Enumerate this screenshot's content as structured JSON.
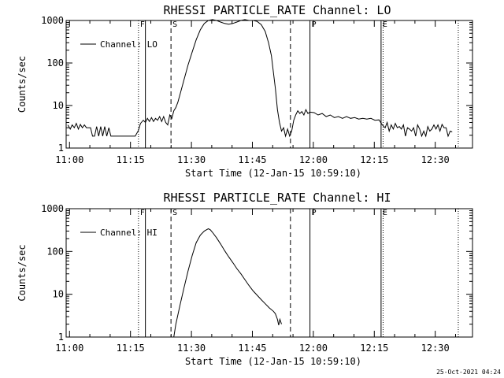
{
  "footer": {
    "timestamp": "25-Oct-2021 04:24"
  },
  "chart_data": [
    {
      "type": "line",
      "title": "RHESSI PARTICLE_RATE Channel: LO",
      "xlabel": "Start Time (12-Jan-15 10:59:10)",
      "ylabel": "Counts/sec",
      "y_scale": "log",
      "ylim": [
        1,
        1000
      ],
      "xlim_minutes": [
        0,
        100
      ],
      "x_ticks": [
        "11:00",
        "11:15",
        "11:30",
        "11:45",
        "12:00",
        "12:15",
        "12:30"
      ],
      "y_ticks": [
        "1",
        "10",
        "100",
        "1000"
      ],
      "legend": {
        "entry": "Channel: LO",
        "placement": "top-left"
      },
      "markers": [
        {
          "label": "F",
          "minute": 17.8,
          "style": "dotted"
        },
        {
          "label": "",
          "minute": 19.5,
          "style": "solid"
        },
        {
          "label": "S",
          "minute": 25.8,
          "style": "dashed"
        },
        {
          "label": "",
          "minute": 55.2,
          "style": "dashed"
        },
        {
          "label": "P",
          "minute": 60.0,
          "style": "solid"
        },
        {
          "label": "E",
          "minute": 77.5,
          "style": "solid"
        },
        {
          "label": "",
          "minute": 78.0,
          "style": "dotted"
        },
        {
          "label": "",
          "minute": 96.5,
          "style": "dotted"
        }
      ],
      "series": [
        {
          "x": [
            0.4,
            1.0,
            1.5,
            2.0,
            2.5,
            3.0,
            3.5,
            4.0,
            4.5,
            5.0,
            5.5,
            6.0,
            6.5,
            7.0,
            7.5,
            8.0,
            8.5,
            9.0,
            9.5,
            10.0,
            10.5,
            11.0,
            11.5,
            12.0,
            12.5,
            13.0,
            14.0,
            15.0,
            16.0,
            17.0,
            17.8,
            18.3,
            19.0,
            19.5,
            20.0,
            20.5,
            21.0,
            21.5,
            22.0,
            22.5,
            23.0,
            23.5,
            24.0,
            24.5,
            25.0,
            25.5,
            26.0,
            26.5,
            27.0,
            27.5,
            28.0,
            29.0,
            30.0,
            31.0,
            32.0,
            33.0,
            34.0,
            35.0,
            36.0,
            37.0,
            38.0,
            39.0,
            40.0,
            41.0,
            42.0,
            43.0,
            44.0,
            45.0,
            46.0,
            47.0,
            48.0,
            49.0,
            49.8,
            50.5,
            51.0,
            51.5,
            52.0,
            52.5,
            53.0,
            53.5,
            54.0,
            54.5,
            55.0,
            55.5,
            56.0,
            56.5,
            57.0,
            57.5,
            58.0,
            58.5,
            59.0,
            59.5,
            60.0,
            61.0,
            62.0,
            63.0,
            64.0,
            65.0,
            66.0,
            67.0,
            68.0,
            69.0,
            70.0,
            71.0,
            72.0,
            73.0,
            74.0,
            75.0,
            76.0,
            77.0,
            77.8,
            78.5,
            79.0,
            79.5,
            80.0,
            80.5,
            81.0,
            81.5,
            82.0,
            82.5,
            83.0,
            83.5,
            84.0,
            84.5,
            85.0,
            85.5,
            86.0,
            86.5,
            87.0,
            87.5,
            88.0,
            88.5,
            89.0,
            89.5,
            90.0,
            90.5,
            91.0,
            91.5,
            92.0,
            92.5,
            93.0,
            93.5,
            94.0,
            94.5,
            95.0
          ],
          "y": [
            3.5,
            2.8,
            3.5,
            3.0,
            3.8,
            2.8,
            3.6,
            3.0,
            3.5,
            3.0,
            3.0,
            3.0,
            1.9,
            1.9,
            3.2,
            1.9,
            3.2,
            1.9,
            3.2,
            1.9,
            3.0,
            1.9,
            1.9,
            1.9,
            1.9,
            1.9,
            1.9,
            1.9,
            1.9,
            1.9,
            2.6,
            3.8,
            4.5,
            4.0,
            5.0,
            4.2,
            5.2,
            4.2,
            5.0,
            4.5,
            5.5,
            4.2,
            5.5,
            4.0,
            3.5,
            6.0,
            5.0,
            7.5,
            9.0,
            12,
            18,
            40,
            90,
            180,
            350,
            600,
            850,
            1000,
            1050,
            1000,
            920,
            850,
            820,
            850,
            920,
            1000,
            1050,
            1000,
            1000,
            950,
            800,
            550,
            300,
            150,
            60,
            25,
            8,
            4,
            2.5,
            3.0,
            1.9,
            2.8,
            1.9,
            2.5,
            4.5,
            6.0,
            7.5,
            6.5,
            7.2,
            6.0,
            8.0,
            6.5,
            7.0,
            6.8,
            6.0,
            6.5,
            5.5,
            6.0,
            5.2,
            5.5,
            5.0,
            5.5,
            5.0,
            5.2,
            4.8,
            5.0,
            4.8,
            5.0,
            4.5,
            4.6,
            3.5,
            3.0,
            4.0,
            2.5,
            3.5,
            2.8,
            3.8,
            3.0,
            3.2,
            2.8,
            3.5,
            1.9,
            3.0,
            2.8,
            2.5,
            3.0,
            1.9,
            3.5,
            2.8,
            1.9,
            2.5,
            1.9,
            3.2,
            2.5,
            2.8,
            3.5,
            2.8,
            3.5,
            2.5,
            3.6,
            3.0,
            3.0,
            1.9,
            2.5,
            2.4
          ]
        }
      ]
    },
    {
      "type": "line",
      "title": "RHESSI PARTICLE_RATE Channel: HI",
      "xlabel": "Start Time (12-Jan-15 10:59:10)",
      "ylabel": "Counts/sec",
      "y_scale": "log",
      "ylim": [
        1,
        1000
      ],
      "xlim_minutes": [
        0,
        100
      ],
      "x_ticks": [
        "11:00",
        "11:15",
        "11:30",
        "11:45",
        "12:00",
        "12:15",
        "12:30"
      ],
      "y_ticks": [
        "1",
        "10",
        "100",
        "1000"
      ],
      "legend": {
        "entry": "Channel: HI",
        "placement": "top-left"
      },
      "markers": [
        {
          "label": "F",
          "minute": 17.8,
          "style": "dotted"
        },
        {
          "label": "",
          "minute": 19.5,
          "style": "solid"
        },
        {
          "label": "S",
          "minute": 25.8,
          "style": "dashed"
        },
        {
          "label": "",
          "minute": 55.2,
          "style": "dashed"
        },
        {
          "label": "P",
          "minute": 60.0,
          "style": "solid"
        },
        {
          "label": "E",
          "minute": 77.5,
          "style": "solid"
        },
        {
          "label": "",
          "minute": 78.0,
          "style": "dotted"
        },
        {
          "label": "",
          "minute": 96.5,
          "style": "dotted"
        }
      ],
      "series": [
        {
          "x": [
            26.5,
            27.0,
            28.0,
            29.0,
            30.0,
            31.0,
            32.0,
            33.0,
            34.0,
            35.0,
            35.5,
            36.0,
            37.0,
            38.0,
            39.0,
            40.0,
            41.0,
            42.0,
            43.0,
            44.0,
            45.0,
            46.0,
            47.0,
            48.0,
            49.0,
            50.0,
            51.0,
            51.5,
            52.0,
            52.3,
            52.6,
            53.0
          ],
          "y": [
            1.0,
            2.0,
            5.5,
            14,
            35,
            80,
            160,
            240,
            300,
            340,
            320,
            280,
            210,
            150,
            105,
            75,
            55,
            40,
            30,
            22,
            16,
            12,
            9.5,
            7.5,
            6.0,
            4.8,
            4.0,
            3.5,
            2.6,
            1.9,
            2.6,
            2.0
          ]
        }
      ]
    }
  ]
}
